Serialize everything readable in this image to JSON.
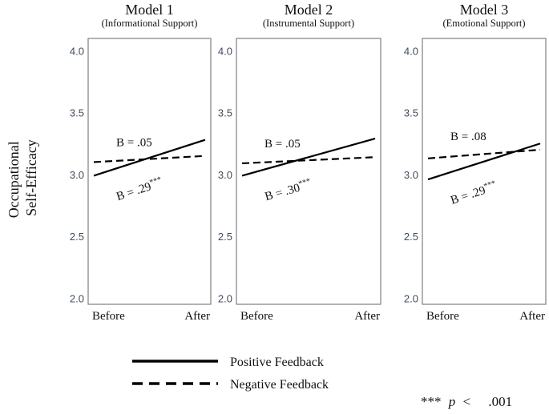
{
  "figure": {
    "ylabel_lines": [
      "Occupational",
      "Self-Efficacy"
    ],
    "legend": {
      "positive": "Positive Feedback",
      "negative": "Negative Feedback"
    },
    "significance_note": {
      "stars": "***",
      "p": "p",
      "op": "<",
      "value": ".001"
    }
  },
  "chart_data": [
    {
      "type": "line",
      "title": "Model 1",
      "subtitle": "(Informational Support)",
      "categories": [
        "Before",
        "After"
      ],
      "ylim": [
        1.95,
        4.1
      ],
      "yticks": [
        "2.0",
        "2.5",
        "3.0",
        "3.5",
        "4.0"
      ],
      "series": [
        {
          "name": "Positive Feedback",
          "values": [
            2.99,
            3.28
          ],
          "label_prefix": "B = ",
          "label_value": ".29",
          "label_sup": "***"
        },
        {
          "name": "Negative Feedback",
          "values": [
            3.1,
            3.15
          ],
          "label_prefix": "B = ",
          "label_value": ".05",
          "label_sup": ""
        }
      ]
    },
    {
      "type": "line",
      "title": "Model 2",
      "subtitle": "(Instrumental Support)",
      "categories": [
        "Before",
        "After"
      ],
      "ylim": [
        1.95,
        4.1
      ],
      "yticks": [
        "2.0",
        "2.5",
        "3.0",
        "3.5",
        "4.0"
      ],
      "series": [
        {
          "name": "Positive Feedback",
          "values": [
            2.99,
            3.29
          ],
          "label_prefix": "B = ",
          "label_value": ".30",
          "label_sup": "***"
        },
        {
          "name": "Negative Feedback",
          "values": [
            3.09,
            3.14
          ],
          "label_prefix": "B = ",
          "label_value": ".05",
          "label_sup": ""
        }
      ]
    },
    {
      "type": "line",
      "title": "Model 3",
      "subtitle": "(Emotional Support)",
      "categories": [
        "Before",
        "After"
      ],
      "ylim": [
        1.95,
        4.1
      ],
      "yticks": [
        "2.0",
        "2.5",
        "3.0",
        "3.5",
        "4.0"
      ],
      "series": [
        {
          "name": "Positive Feedback",
          "values": [
            2.96,
            3.25
          ],
          "label_prefix": "B = ",
          "label_value": ".29",
          "label_sup": "***"
        },
        {
          "name": "Negative Feedback",
          "values": [
            3.13,
            3.2
          ],
          "label_prefix": "B = ",
          "label_value": ".08",
          "label_sup": ""
        }
      ]
    }
  ]
}
